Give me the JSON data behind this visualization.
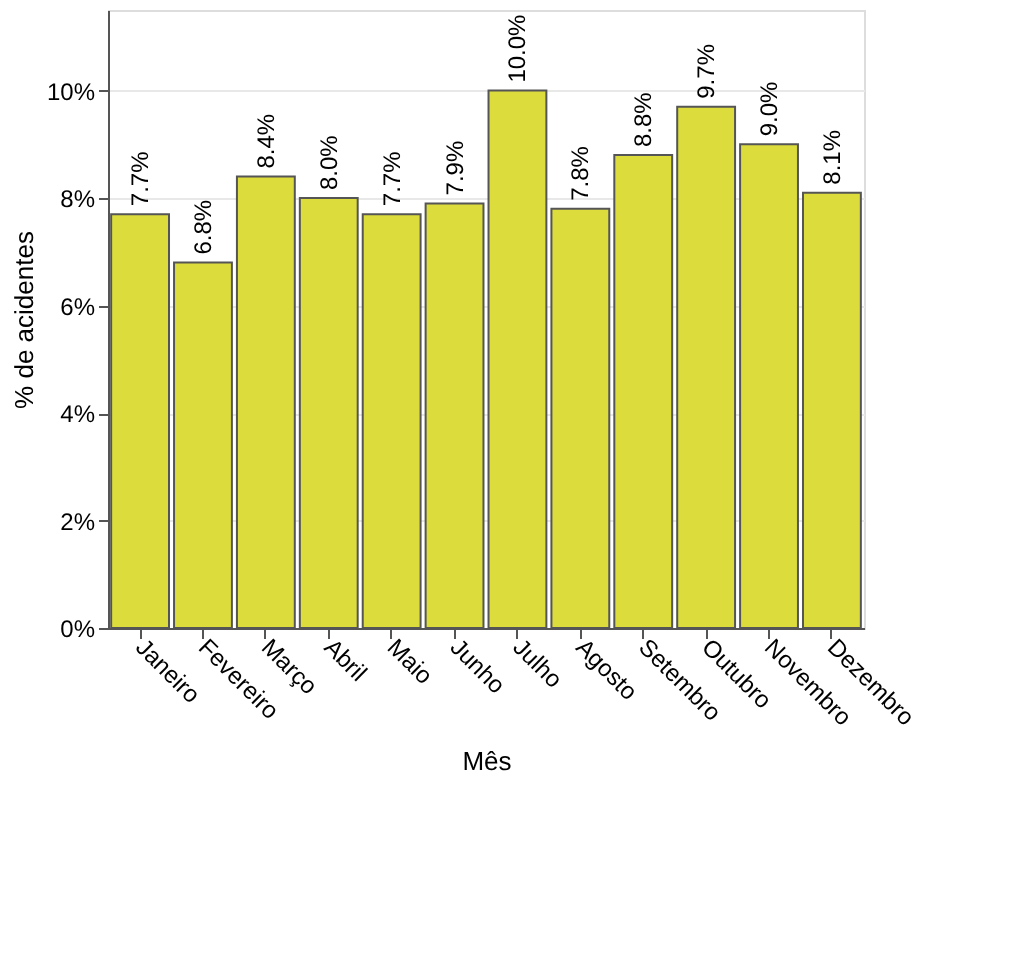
{
  "chart_data": {
    "type": "bar",
    "xlabel": "Mês",
    "ylabel": "% de acidentes",
    "categories": [
      "Janeiro",
      "Fevereiro",
      "Março",
      "Abril",
      "Maio",
      "Junho",
      "Julho",
      "Agosto",
      "Setembro",
      "Outubro",
      "Novembro",
      "Dezembro"
    ],
    "values": [
      7.7,
      6.8,
      8.4,
      8.0,
      7.7,
      7.9,
      10.0,
      7.8,
      8.8,
      9.7,
      9.0,
      8.1
    ],
    "value_labels": [
      "7.7%",
      "6.8%",
      "8.4%",
      "8.0%",
      "7.7%",
      "7.9%",
      "10.0%",
      "7.8%",
      "8.8%",
      "9.7%",
      "9.0%",
      "8.1%"
    ],
    "color": "#dcdc3c",
    "ylim": [
      0,
      11.5
    ],
    "yticks": [
      {
        "value": 0,
        "label": "0%"
      },
      {
        "value": 2,
        "label": "2%"
      },
      {
        "value": 4,
        "label": "4%"
      },
      {
        "value": 6,
        "label": "6%"
      },
      {
        "value": 8,
        "label": "8%"
      },
      {
        "value": 10,
        "label": "10%"
      }
    ],
    "grid": "y"
  }
}
